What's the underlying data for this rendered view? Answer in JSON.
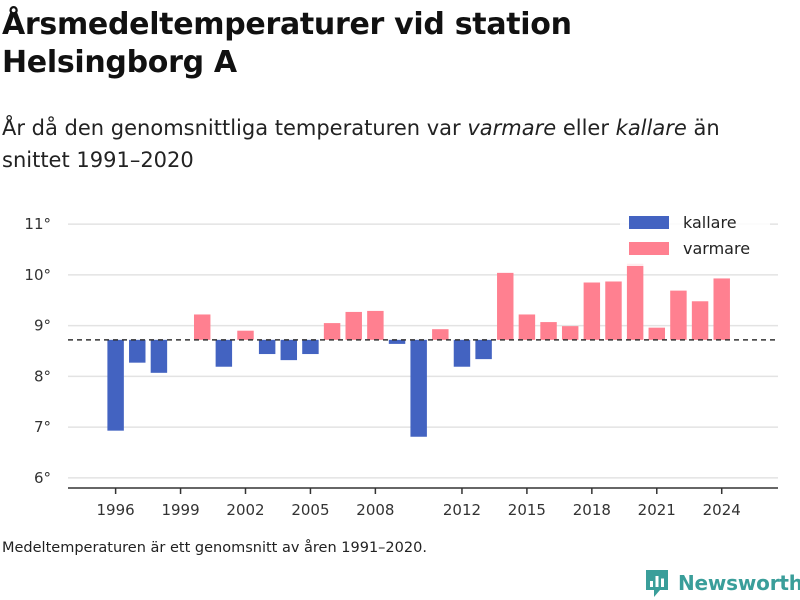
{
  "header": {
    "title": "Årsmedeltemperaturer vid station Helsingborg A",
    "subtitle_parts": [
      "År då den genomsnittliga temperaturen var ",
      "varmare",
      " eller ",
      "kallare",
      " än snittet 1991–2020"
    ]
  },
  "footer": {
    "note": "Medeltemperaturen är ett genomsnitt av åren 1991–2020.",
    "brand": "Newsworthy"
  },
  "colors": {
    "kallare": "#4363c1",
    "varmare": "#ff8090",
    "grid": "#e3e3e3",
    "axis": "#333333",
    "reference": "#333333",
    "brand": "#3a9e9a"
  },
  "chart_data": {
    "type": "bar",
    "title": "Årsmedeltemperaturer vid station Helsingborg A",
    "baseline": 8.72,
    "ylim": [
      5.8,
      11.2
    ],
    "yticks": [
      6,
      7,
      8,
      9,
      10,
      11
    ],
    "ytick_labels": [
      "6°",
      "7°",
      "8°",
      "9°",
      "10°",
      "11°"
    ],
    "xlim": [
      1993.8,
      2026.6
    ],
    "xticks": [
      1996,
      1999,
      2002,
      2005,
      2008,
      2012,
      2015,
      2018,
      2021,
      2024
    ],
    "xtick_labels": [
      "1996",
      "1999",
      "2002",
      "2005",
      "2008",
      "2012",
      "2015",
      "2018",
      "2021",
      "2024"
    ],
    "grid": true,
    "legend": {
      "placement": "top-right",
      "entries": [
        {
          "key": "kallare",
          "label": "kallare"
        },
        {
          "key": "varmare",
          "label": "varmare"
        }
      ]
    },
    "bars": [
      {
        "year": 1996,
        "value": 6.93,
        "group": "kallare"
      },
      {
        "year": 1997,
        "value": 8.27,
        "group": "kallare"
      },
      {
        "year": 1998,
        "value": 8.07,
        "group": "kallare"
      },
      {
        "year": 2000,
        "value": 9.22,
        "group": "varmare"
      },
      {
        "year": 2001,
        "value": 8.19,
        "group": "kallare"
      },
      {
        "year": 2002,
        "value": 8.9,
        "group": "varmare"
      },
      {
        "year": 2003,
        "value": 8.44,
        "group": "kallare"
      },
      {
        "year": 2004,
        "value": 8.32,
        "group": "kallare"
      },
      {
        "year": 2005,
        "value": 8.44,
        "group": "kallare"
      },
      {
        "year": 2006,
        "value": 9.05,
        "group": "varmare"
      },
      {
        "year": 2007,
        "value": 9.27,
        "group": "varmare"
      },
      {
        "year": 2008,
        "value": 9.29,
        "group": "varmare"
      },
      {
        "year": 2009,
        "value": 8.64,
        "group": "kallare"
      },
      {
        "year": 2010,
        "value": 6.81,
        "group": "kallare"
      },
      {
        "year": 2011,
        "value": 8.93,
        "group": "varmare"
      },
      {
        "year": 2012,
        "value": 8.19,
        "group": "kallare"
      },
      {
        "year": 2013,
        "value": 8.34,
        "group": "kallare"
      },
      {
        "year": 2014,
        "value": 10.04,
        "group": "varmare"
      },
      {
        "year": 2015,
        "value": 9.22,
        "group": "varmare"
      },
      {
        "year": 2016,
        "value": 9.07,
        "group": "varmare"
      },
      {
        "year": 2017,
        "value": 8.99,
        "group": "varmare"
      },
      {
        "year": 2018,
        "value": 9.85,
        "group": "varmare"
      },
      {
        "year": 2019,
        "value": 9.87,
        "group": "varmare"
      },
      {
        "year": 2020,
        "value": 10.22,
        "group": "varmare"
      },
      {
        "year": 2021,
        "value": 8.96,
        "group": "varmare"
      },
      {
        "year": 2022,
        "value": 9.69,
        "group": "varmare"
      },
      {
        "year": 2023,
        "value": 9.48,
        "group": "varmare"
      },
      {
        "year": 2024,
        "value": 9.93,
        "group": "varmare"
      }
    ]
  }
}
